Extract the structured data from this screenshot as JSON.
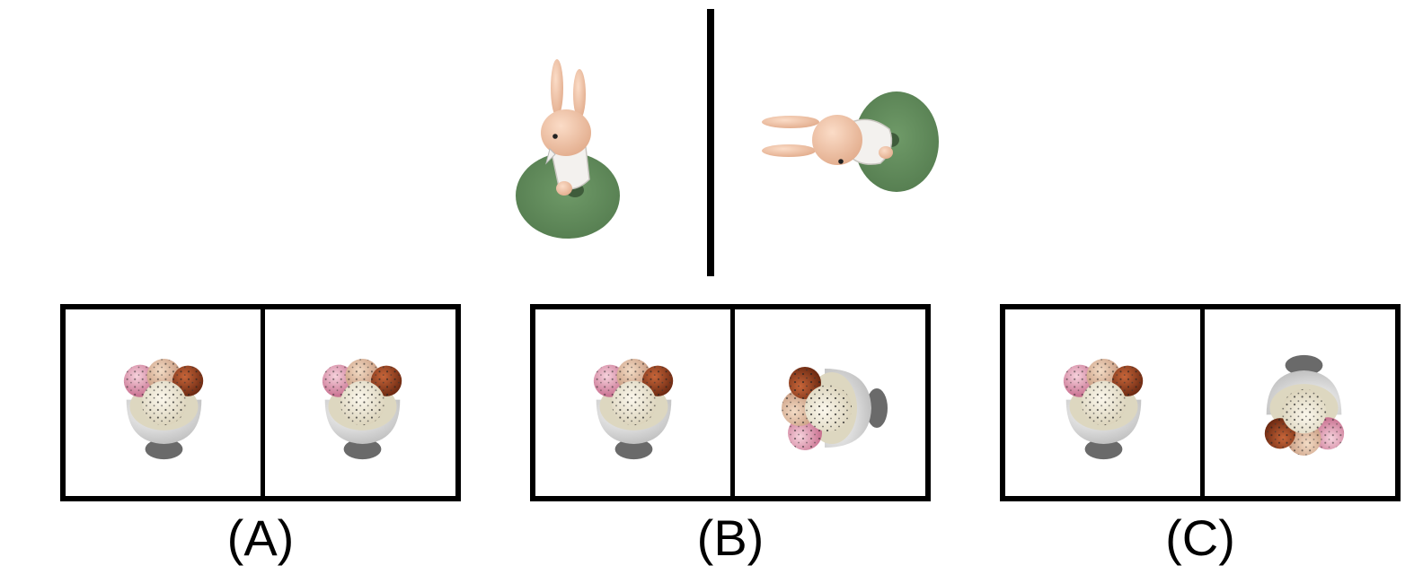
{
  "question": {
    "reference_images": [
      {
        "subject": "bunny-figurine-front-view"
      },
      {
        "subject": "bunny-figurine-rotated-view"
      }
    ]
  },
  "options": [
    {
      "label": "(A)",
      "left_view": "sundae-upright",
      "right_view": "sundae-upright"
    },
    {
      "label": "(B)",
      "left_view": "sundae-upright",
      "right_view": "sundae-rotated-left"
    },
    {
      "label": "(C)",
      "left_view": "sundae-upright",
      "right_view": "sundae-upside-down"
    }
  ],
  "colors": {
    "bunny_skin": "#f2c4a6",
    "base_green": "#5e8a58",
    "border": "#000000",
    "cup": "#e8e8e6",
    "stem": "#707070"
  }
}
